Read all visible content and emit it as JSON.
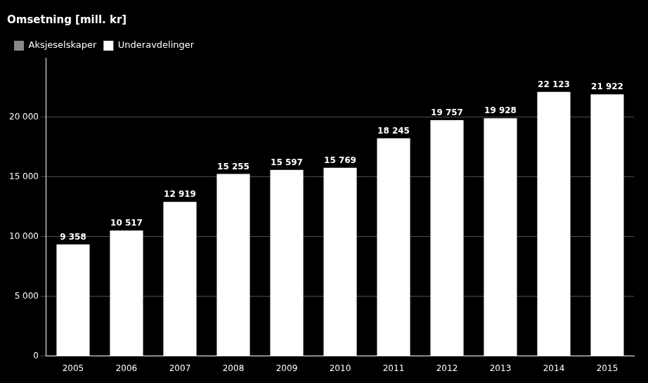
{
  "chart_data": {
    "type": "bar",
    "title": "Omsetning [mill. kr]",
    "categories": [
      "2005",
      "2006",
      "2007",
      "2008",
      "2009",
      "2010",
      "2011",
      "2012",
      "2013",
      "2014",
      "2015"
    ],
    "series": [
      {
        "name": "Aksjeselskaper",
        "color": "#888888",
        "values": [
          null,
          null,
          null,
          null,
          null,
          null,
          null,
          null,
          null,
          null,
          null
        ]
      },
      {
        "name": "Underavdelinger",
        "color": "#ffffff",
        "values": [
          9358,
          10517,
          12919,
          15255,
          15597,
          15769,
          18245,
          19757,
          19928,
          22123,
          21922
        ],
        "value_labels": [
          "9 358",
          "10 517",
          "12 919",
          "15 255",
          "15 597",
          "15 769",
          "18 245",
          "19 757",
          "19 928",
          "22 123",
          "21 922"
        ]
      }
    ],
    "ylim": [
      0,
      25000
    ],
    "yticks": [
      0,
      {
        "value": 5000,
        "label": "5 000"
      },
      {
        "value": 10000,
        "label": "10 000"
      },
      {
        "value": 15000,
        "label": "15 000"
      },
      {
        "value": 20000,
        "label": "20 000"
      }
    ],
    "grid": true,
    "legend": "upper left",
    "data_labels": true
  }
}
